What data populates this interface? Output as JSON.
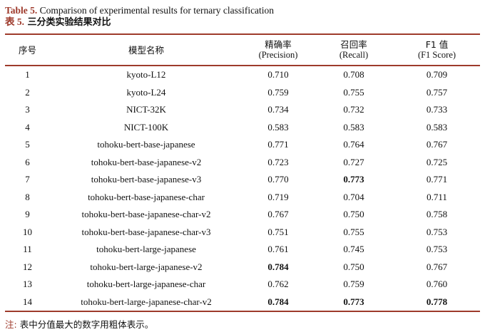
{
  "colors": {
    "accent": "#9e3a2b"
  },
  "caption": {
    "en_label": "Table 5.",
    "en_text": " Comparison of experimental results for ternary classification",
    "zh_label": "表 5.",
    "zh_text": " 三分类实验结果对比"
  },
  "table": {
    "columns": [
      {
        "zh": "序号",
        "en": ""
      },
      {
        "zh": "模型名称",
        "en": ""
      },
      {
        "zh": "精确率",
        "en": "(Precision)"
      },
      {
        "zh": "召回率",
        "en": "(Recall)"
      },
      {
        "zh": "F1 值",
        "en": "(F1 Score)"
      }
    ],
    "rows": [
      {
        "no": "1",
        "model": "kyoto-L12",
        "precision": {
          "v": "0.710"
        },
        "recall": {
          "v": "0.708"
        },
        "f1": {
          "v": "0.709"
        }
      },
      {
        "no": "2",
        "model": "kyoto-L24",
        "precision": {
          "v": "0.759"
        },
        "recall": {
          "v": "0.755"
        },
        "f1": {
          "v": "0.757"
        }
      },
      {
        "no": "3",
        "model": "NICT-32K",
        "precision": {
          "v": "0.734"
        },
        "recall": {
          "v": "0.732"
        },
        "f1": {
          "v": "0.733"
        }
      },
      {
        "no": "4",
        "model": "NICT-100K",
        "precision": {
          "v": "0.583"
        },
        "recall": {
          "v": "0.583"
        },
        "f1": {
          "v": "0.583"
        }
      },
      {
        "no": "5",
        "model": "tohoku-bert-base-japanese",
        "precision": {
          "v": "0.771"
        },
        "recall": {
          "v": "0.764"
        },
        "f1": {
          "v": "0.767"
        }
      },
      {
        "no": "6",
        "model": "tohoku-bert-base-japanese-v2",
        "precision": {
          "v": "0.723"
        },
        "recall": {
          "v": "0.727"
        },
        "f1": {
          "v": "0.725"
        }
      },
      {
        "no": "7",
        "model": "tohoku-bert-base-japanese-v3",
        "precision": {
          "v": "0.770"
        },
        "recall": {
          "v": "0.773",
          "bold": true
        },
        "f1": {
          "v": "0.771"
        }
      },
      {
        "no": "8",
        "model": "tohoku-bert-base-japanese-char",
        "precision": {
          "v": "0.719"
        },
        "recall": {
          "v": "0.704"
        },
        "f1": {
          "v": "0.711"
        }
      },
      {
        "no": "9",
        "model": "tohoku-bert-base-japanese-char-v2",
        "precision": {
          "v": "0.767"
        },
        "recall": {
          "v": "0.750"
        },
        "f1": {
          "v": "0.758"
        }
      },
      {
        "no": "10",
        "model": "tohoku-bert-base-japanese-char-v3",
        "precision": {
          "v": "0.751"
        },
        "recall": {
          "v": "0.755"
        },
        "f1": {
          "v": "0.753"
        }
      },
      {
        "no": "11",
        "model": "tohoku-bert-large-japanese",
        "precision": {
          "v": "0.761"
        },
        "recall": {
          "v": "0.745"
        },
        "f1": {
          "v": "0.753"
        }
      },
      {
        "no": "12",
        "model": "tohoku-bert-large-japanese-v2",
        "precision": {
          "v": "0.784",
          "bold": true
        },
        "recall": {
          "v": "0.750"
        },
        "f1": {
          "v": "0.767"
        }
      },
      {
        "no": "13",
        "model": "tohoku-bert-large-japanese-char",
        "precision": {
          "v": "0.762"
        },
        "recall": {
          "v": "0.759"
        },
        "f1": {
          "v": "0.760"
        }
      },
      {
        "no": "14",
        "model": "tohoku-bert-large-japanese-char-v2",
        "precision": {
          "v": "0.784",
          "bold": true
        },
        "recall": {
          "v": "0.773",
          "bold": true
        },
        "f1": {
          "v": "0.778",
          "bold": true
        }
      }
    ]
  },
  "note": {
    "label": "注:",
    "text": " 表中分值最大的数字用粗体表示。"
  }
}
